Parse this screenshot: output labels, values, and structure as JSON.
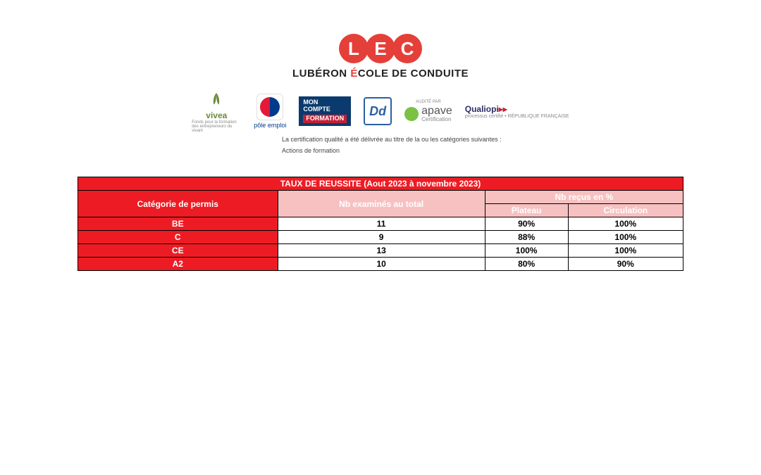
{
  "logo": {
    "letters": [
      "L",
      "E",
      "C"
    ],
    "tagline_pre": "LUBÉRON ",
    "tagline_accent": "É",
    "tagline_post": "COLE DE CONDUITE"
  },
  "partners": {
    "vivea": {
      "name": "vivea",
      "sub": "Fonds pour la formation des entrepreneurs du vivant"
    },
    "pole_emploi": {
      "name": "pôle emploi"
    },
    "mcf": {
      "l1": "MON",
      "l2": "COMPTE",
      "l3": "FORMATION"
    },
    "dd": {
      "text": "Dd"
    },
    "apave": {
      "name": "apave",
      "sub": "Certification",
      "top": "AUDITÉ PAR"
    },
    "qualiopi": {
      "name": "Qualiopi",
      "sub": "processus certifié • RÉPUBLIQUE FRANÇAISE"
    }
  },
  "cert_note": {
    "l1": "La certification qualité a été délivrée au titre de la ou les catégories suivantes :",
    "l2": "Actions de formation"
  },
  "table": {
    "title": "TAUX DE REUSSITE (Aout 2023 à novembre 2023)",
    "title_bg": "#ed1c24",
    "title_fg": "#ffffff",
    "headers": {
      "cat": "Catégorie de permis",
      "examines": "Nb examinés au total",
      "recus": "Nb reçus en %",
      "plateau": "Plateau",
      "circulation": "Circulation"
    },
    "header_bg_red": "#ed1c24",
    "header_bg_pink": "#f8c1c1",
    "header_fg": "#ffffff",
    "col_cat_bg": "#ed1c24",
    "col_cat_fg": "#ffffff",
    "val_bg": "#ffffff",
    "val_fg": "#000000",
    "columns_width_percent": [
      25,
      25,
      25,
      25
    ],
    "rows": [
      {
        "cat": "BE",
        "examines": "11",
        "plateau": "90%",
        "circulation": "100%"
      },
      {
        "cat": "C",
        "examines": "9",
        "plateau": "88%",
        "circulation": "100%"
      },
      {
        "cat": "CE",
        "examines": "13",
        "plateau": "100%",
        "circulation": "100%"
      },
      {
        "cat": "A2",
        "examines": "10",
        "plateau": "80%",
        "circulation": "90%"
      }
    ],
    "font_size_pt": 9,
    "border_color": "#000000"
  }
}
